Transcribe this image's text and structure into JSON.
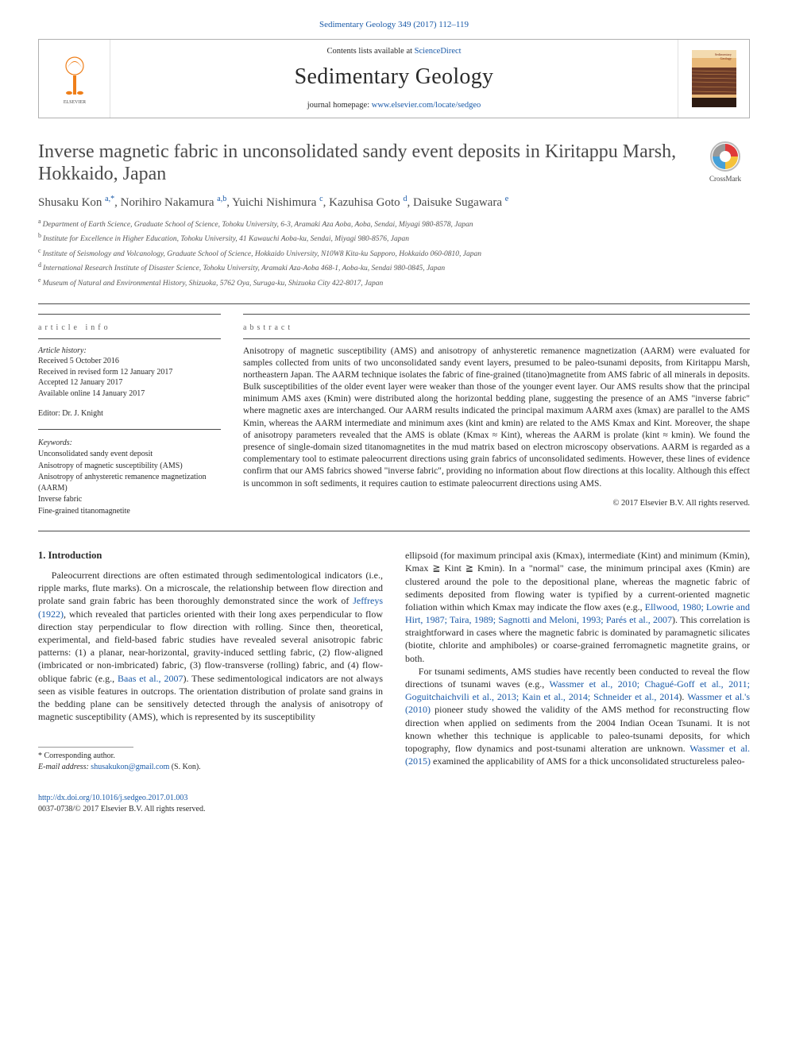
{
  "top_citation_link": "Sedimentary Geology 349 (2017) 112–119",
  "header": {
    "contents_prefix": "Contents lists available at ",
    "contents_link": "ScienceDirect",
    "journal_name": "Sedimentary Geology",
    "homepage_prefix": "journal homepage: ",
    "homepage_url": "www.elsevier.com/locate/sedgeo",
    "publisher_logo_alt": "Elsevier",
    "cover_colors": {
      "bg": "#e8b878",
      "band": "#7a2f1a",
      "text": "#7a2f1a"
    }
  },
  "crossmark_label": "CrossMark",
  "article": {
    "title": "Inverse magnetic fabric in unconsolidated sandy event deposits in Kiritappu Marsh, Hokkaido, Japan",
    "authors": [
      {
        "name": "Shusaku Kon",
        "marks": "a,*"
      },
      {
        "name": "Norihiro Nakamura",
        "marks": "a,b"
      },
      {
        "name": "Yuichi Nishimura",
        "marks": "c"
      },
      {
        "name": "Kazuhisa Goto",
        "marks": "d"
      },
      {
        "name": "Daisuke Sugawara",
        "marks": "e"
      }
    ],
    "affiliations": [
      {
        "key": "a",
        "text": "Department of Earth Science, Graduate School of Science, Tohoku University, 6-3, Aramaki Aza Aoba, Aoba, Sendai, Miyagi 980-8578, Japan"
      },
      {
        "key": "b",
        "text": "Institute for Excellence in Higher Education, Tohoku University, 41 Kawauchi Aoba-ku, Sendai, Miyagi 980-8576, Japan"
      },
      {
        "key": "c",
        "text": "Institute of Seismology and Volcanology, Graduate School of Science, Hokkaido University, N10W8 Kita-ku Sapporo, Hokkaido 060-0810, Japan"
      },
      {
        "key": "d",
        "text": "International Research Institute of Disaster Science, Tohoku University, Aramaki Aza-Aoba 468-1, Aoba-ku, Sendai 980-0845, Japan"
      },
      {
        "key": "e",
        "text": "Museum of Natural and Environmental History, Shizuoka, 5762 Oya, Suruga-ku, Shizuoka City 422-8017, Japan"
      }
    ]
  },
  "article_info": {
    "heading": "article info",
    "history_label": "Article history:",
    "history": [
      "Received 5 October 2016",
      "Received in revised form 12 January 2017",
      "Accepted 12 January 2017",
      "Available online 14 January 2017"
    ],
    "editor": "Editor: Dr. J. Knight",
    "keywords_label": "Keywords:",
    "keywords": [
      "Unconsolidated sandy event deposit",
      "Anisotropy of magnetic susceptibility (AMS)",
      "Anisotropy of anhysteretic remanence magnetization (AARM)",
      "Inverse fabric",
      "Fine-grained titanomagnetite"
    ]
  },
  "abstract": {
    "heading": "abstract",
    "text": "Anisotropy of magnetic susceptibility (AMS) and anisotropy of anhysteretic remanence magnetization (AARM) were evaluated for samples collected from units of two unconsolidated sandy event layers, presumed to be paleo-tsunami deposits, from Kiritappu Marsh, northeastern Japan. The AARM technique isolates the fabric of fine-grained (titano)magnetite from AMS fabric of all minerals in deposits. Bulk susceptibilities of the older event layer were weaker than those of the younger event layer. Our AMS results show that the principal minimum AMS axes (Kmin) were distributed along the horizontal bedding plane, suggesting the presence of an AMS \"inverse fabric\" where magnetic axes are interchanged. Our AARM results indicated the principal maximum AARM axes (kmax) are parallel to the AMS Kmin, whereas the AARM intermediate and minimum axes (kint and kmin) are related to the AMS Kmax and Kint. Moreover, the shape of anisotropy parameters revealed that the AMS is oblate (Kmax ≈ Kint), whereas the AARM is prolate (kint ≈ kmin). We found the presence of single-domain sized titanomagnetites in the mud matrix based on electron microscopy observations. AARM is regarded as a complementary tool to estimate paleocurrent directions using grain fabrics of unconsolidated sediments. However, these lines of evidence confirm that our AMS fabrics showed \"inverse fabric\", providing no information about flow directions at this locality. Although this effect is uncommon in soft sediments, it requires caution to estimate paleocurrent directions using AMS.",
    "copyright": "© 2017 Elsevier B.V. All rights reserved."
  },
  "body": {
    "section_heading": "1. Introduction",
    "para1": "Paleocurrent directions are often estimated through sedimentological indicators (i.e., ripple marks, flute marks). On a microscale, the relationship between flow direction and prolate sand grain fabric has been thoroughly demonstrated since the work of ",
    "cite1": "Jeffreys (1922)",
    "para1b": ", which revealed that particles oriented with their long axes perpendicular to flow direction stay perpendicular to flow direction with rolling. Since then, theoretical, experimental, and field-based fabric studies have revealed several anisotropic fabric patterns: (1) a planar, near-horizontal, gravity-induced settling fabric, (2) flow-aligned (imbricated or non-imbricated) fabric, (3) flow-transverse (rolling) fabric, and (4) flow-oblique fabric (e.g., ",
    "cite2": "Baas et al., 2007",
    "para1c": "). These sedimentological indicators are not always seen as visible features in outcrops. The orientation distribution of prolate sand grains in the bedding plane can be sensitively detected through the analysis of anisotropy of magnetic susceptibility (AMS), which is represented by its susceptibility",
    "para2a": "ellipsoid (for maximum principal axis (Kmax), intermediate (Kint) and minimum (Kmin), Kmax ≧ Kint ≧ Kmin). In a \"normal\" case, the minimum principal axes (Kmin) are clustered around the pole to the depositional plane, whereas the magnetic fabric of sediments deposited from flowing water is typified by a current-oriented magnetic foliation within which Kmax may indicate the flow axes (e.g., ",
    "cite3": "Ellwood, 1980; Lowrie and Hirt, 1987; Taira, 1989; Sagnotti and Meloni, 1993; Parés et al., 2007",
    "para2b": "). This correlation is straightforward in cases where the magnetic fabric is dominated by paramagnetic silicates (biotite, chlorite and amphiboles) or coarse-grained ferromagnetic magnetite grains, or both.",
    "para3a": "For tsunami sediments, AMS studies have recently been conducted to reveal the flow directions of tsunami waves (e.g., ",
    "cite4": "Wassmer et al., 2010; Chagué-Goff et al., 2011; Goguitchaichvili et al., 2013; Kain et al., 2014; Schneider et al., 2014",
    "para3b": "). ",
    "cite5": "Wassmer et al.'s (2010)",
    "para3c": " pioneer study showed the validity of the AMS method for reconstructing flow direction when applied on sediments from the 2004 Indian Ocean Tsunami. It is not known whether this technique is applicable to paleo-tsunami deposits, for which topography, flow dynamics and post-tsunami alteration are unknown. ",
    "cite6": "Wassmer et al. (2015)",
    "para3d": " examined the applicability of AMS for a thick unconsolidated structureless paleo-"
  },
  "footnote": {
    "corr_label": "* Corresponding author.",
    "email_label": "E-mail address:",
    "email": "shusakukon@gmail.com",
    "email_who": "(S. Kon)."
  },
  "footer": {
    "doi": "http://dx.doi.org/10.1016/j.sedgeo.2017.01.003",
    "issn_line": "0037-0738/© 2017 Elsevier B.V. All rights reserved."
  },
  "colors": {
    "link": "#1a5aa8",
    "text": "#2a2a2a",
    "muted": "#666666",
    "rule": "#4a4a4a",
    "elsevier_orange": "#ef7f1a"
  }
}
